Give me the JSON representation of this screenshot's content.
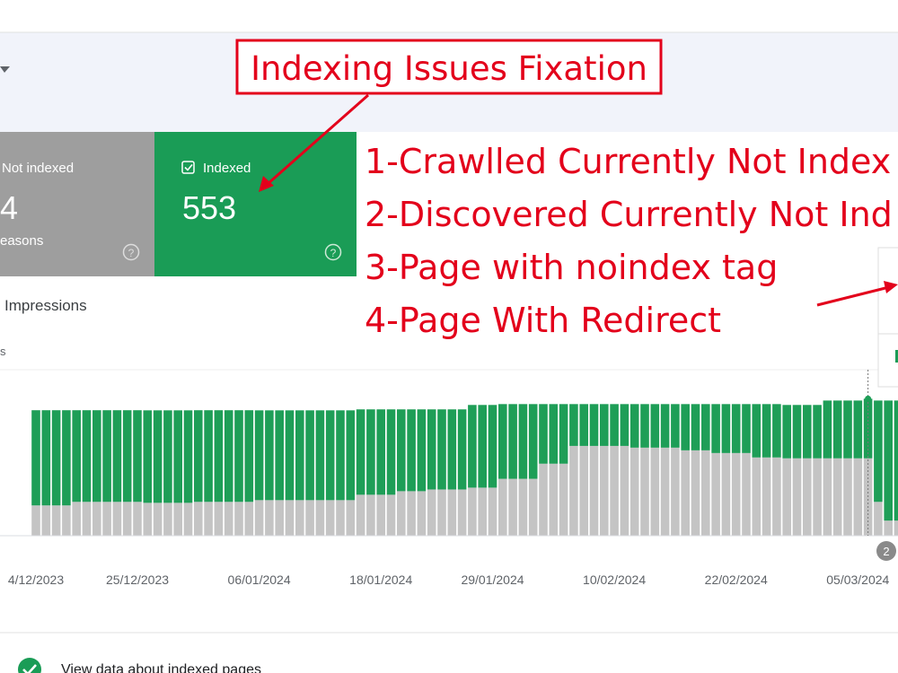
{
  "annotation": {
    "title": "Indexing Issues Fixation",
    "items": [
      "1-Crawlled Currently Not Index",
      "2-Discovered Currently Not Ind",
      "3-Page with noindex tag",
      "4-Page With Redirect"
    ]
  },
  "cards": [
    {
      "label": "Not indexed",
      "count": "4",
      "sublabel": "easons"
    },
    {
      "label": "Indexed",
      "count": "553"
    }
  ],
  "chart_data": {
    "type": "bar",
    "stacked": true,
    "tab_label": "Impressions",
    "y_label": "s",
    "badge": "2",
    "categories": [
      "4/12/2023",
      null,
      null,
      null,
      null,
      null,
      null,
      null,
      null,
      null,
      "25/12/2023",
      null,
      null,
      null,
      null,
      null,
      null,
      null,
      null,
      null,
      null,
      null,
      "06/01/2024",
      null,
      null,
      null,
      null,
      null,
      null,
      null,
      null,
      null,
      null,
      null,
      "18/01/2024",
      null,
      null,
      null,
      null,
      null,
      null,
      null,
      null,
      null,
      null,
      "29/01/2024",
      null,
      null,
      null,
      null,
      null,
      null,
      null,
      null,
      null,
      null,
      null,
      "10/02/2024",
      null,
      null,
      null,
      null,
      null,
      null,
      null,
      null,
      null,
      null,
      null,
      "22/02/2024",
      null,
      null,
      null,
      null,
      null,
      null,
      null,
      null,
      null,
      null,
      null,
      "05/03/2024",
      null,
      null,
      null,
      null
    ],
    "series": [
      {
        "color": "#c4c4c4",
        "values": [
          281,
          281,
          281,
          281,
          314,
          314,
          314,
          314,
          314,
          314,
          314,
          305,
          305,
          305,
          305,
          305,
          314,
          314,
          314,
          314,
          314,
          314,
          330,
          330,
          330,
          330,
          330,
          330,
          330,
          330,
          330,
          330,
          380,
          380,
          380,
          380,
          413,
          413,
          413,
          429,
          429,
          429,
          429,
          446,
          446,
          446,
          528,
          528,
          528,
          528,
          668,
          668,
          668,
          833,
          833,
          833,
          833,
          833,
          833,
          817,
          817,
          817,
          817,
          817,
          792,
          792,
          792,
          767,
          767,
          767,
          767,
          726,
          726,
          726,
          718,
          718,
          718,
          718,
          718,
          718,
          718,
          718,
          718,
          314,
          140,
          140
        ]
      },
      {
        "color": "#1e9e57",
        "values": [
          883,
          883,
          883,
          883,
          850,
          850,
          850,
          850,
          850,
          850,
          850,
          858,
          858,
          858,
          858,
          858,
          850,
          850,
          850,
          850,
          850,
          850,
          833,
          833,
          833,
          833,
          833,
          833,
          833,
          833,
          833,
          833,
          792,
          792,
          792,
          792,
          759,
          759,
          759,
          743,
          743,
          743,
          743,
          767,
          767,
          767,
          693,
          693,
          693,
          693,
          553,
          553,
          553,
          388,
          388,
          388,
          388,
          388,
          388,
          404,
          404,
          404,
          404,
          404,
          429,
          429,
          429,
          454,
          454,
          454,
          454,
          495,
          495,
          495,
          495,
          495,
          495,
          495,
          536,
          536,
          536,
          536,
          553,
          940,
          1114,
          1114
        ]
      }
    ],
    "ylim": [
      0,
      1540
    ]
  },
  "footer": {
    "link": "View data about indexed pages"
  }
}
